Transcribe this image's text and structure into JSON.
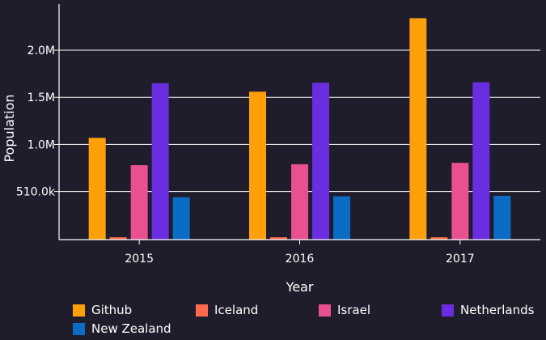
{
  "chart_data": {
    "type": "bar",
    "categories": [
      "2015",
      "2016",
      "2017"
    ],
    "series": [
      {
        "name": "Github",
        "color": "#ff9f0a",
        "values": [
          1080000,
          1570000,
          2350000
        ]
      },
      {
        "name": "Iceland",
        "color": "#ff6b4a",
        "values": [
          25000,
          25000,
          25000
        ]
      },
      {
        "name": "Israel",
        "color": "#e8508f",
        "values": [
          790000,
          800000,
          815000
        ]
      },
      {
        "name": "Netherlands",
        "color": "#6a2ee0",
        "values": [
          1660000,
          1665000,
          1670000
        ]
      },
      {
        "name": "New Zealand",
        "color": "#0a6cc4",
        "values": [
          450000,
          460000,
          465000
        ]
      }
    ],
    "xlabel": "Year",
    "ylabel": "Population",
    "yticks": [
      {
        "value": 510000,
        "label": "510.0k"
      },
      {
        "value": 1010000,
        "label": "1.0M"
      },
      {
        "value": 1510000,
        "label": "1.5M"
      },
      {
        "value": 2010000,
        "label": "2.0M"
      }
    ],
    "ylim": [
      0,
      2500000
    ],
    "grid": true,
    "legend_position": "bottom"
  }
}
